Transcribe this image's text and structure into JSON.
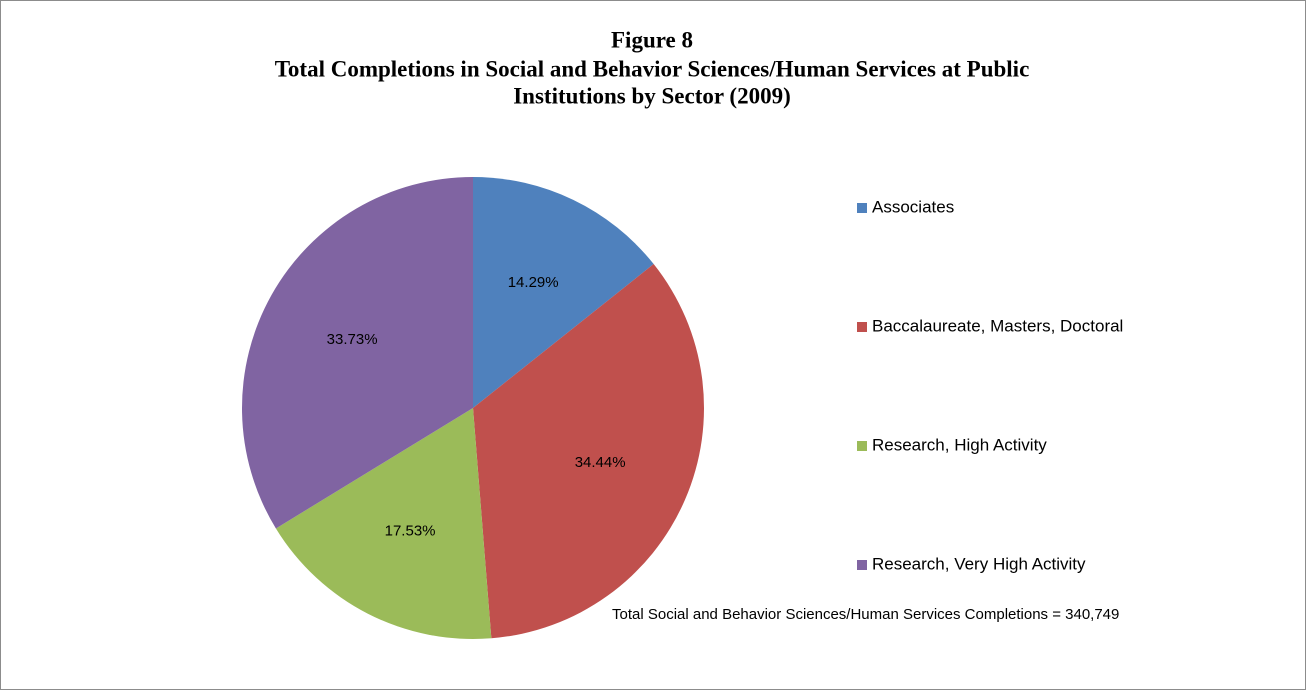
{
  "chart_data": {
    "type": "pie",
    "title": "Figure 8",
    "subtitle": [
      "Total Completions in Social and Behavior Sciences/Human Services at Public",
      "Institutions by Sector (2009)"
    ],
    "categories": [
      "Associates",
      "Baccalaureate, Masters, Doctoral",
      "Research, High Activity",
      "Research, Very High Activity"
    ],
    "values": [
      14.29,
      34.44,
      17.53,
      33.73
    ],
    "value_labels": [
      "14.29%",
      "34.44%",
      "17.53%",
      "33.73%"
    ],
    "colors": [
      "#4f81bd",
      "#c0504d",
      "#9bbb59",
      "#8064a2"
    ],
    "legend": "right",
    "annotation": "Total Social and Behavior Sciences/Human Services Completions = 340,749"
  }
}
